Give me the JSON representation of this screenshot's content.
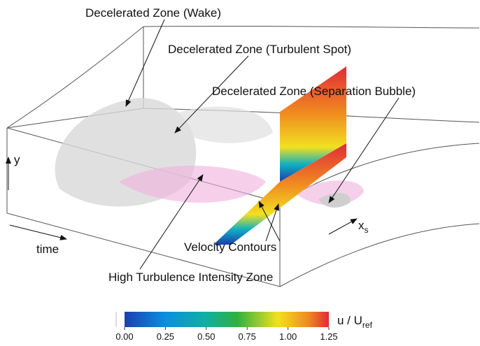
{
  "annotations": [
    "Decelerated Zone (Wake)",
    "Decelerated Zone (Turbulent Spot)",
    "Decelerated Zone (Separation Bubble)",
    "Velocity Contours",
    "High Turbulence Intensity Zone"
  ],
  "axes": {
    "y": "y",
    "time": "time",
    "xs": {
      "text": "x",
      "subscript": "s"
    }
  },
  "colorbar": {
    "label": {
      "text": "u / U",
      "subscript": "ref"
    },
    "lim": [
      0,
      1.25
    ],
    "ticks": [
      {
        "value": 0,
        "label": "0.00"
      },
      {
        "value": 0.25,
        "label": "0.25"
      },
      {
        "value": 0.5,
        "label": "0.50"
      },
      {
        "value": 0.75,
        "label": "0.75"
      },
      {
        "value": 1,
        "label": "1.00"
      },
      {
        "value": 1.25,
        "label": "1.25"
      }
    ]
  }
}
